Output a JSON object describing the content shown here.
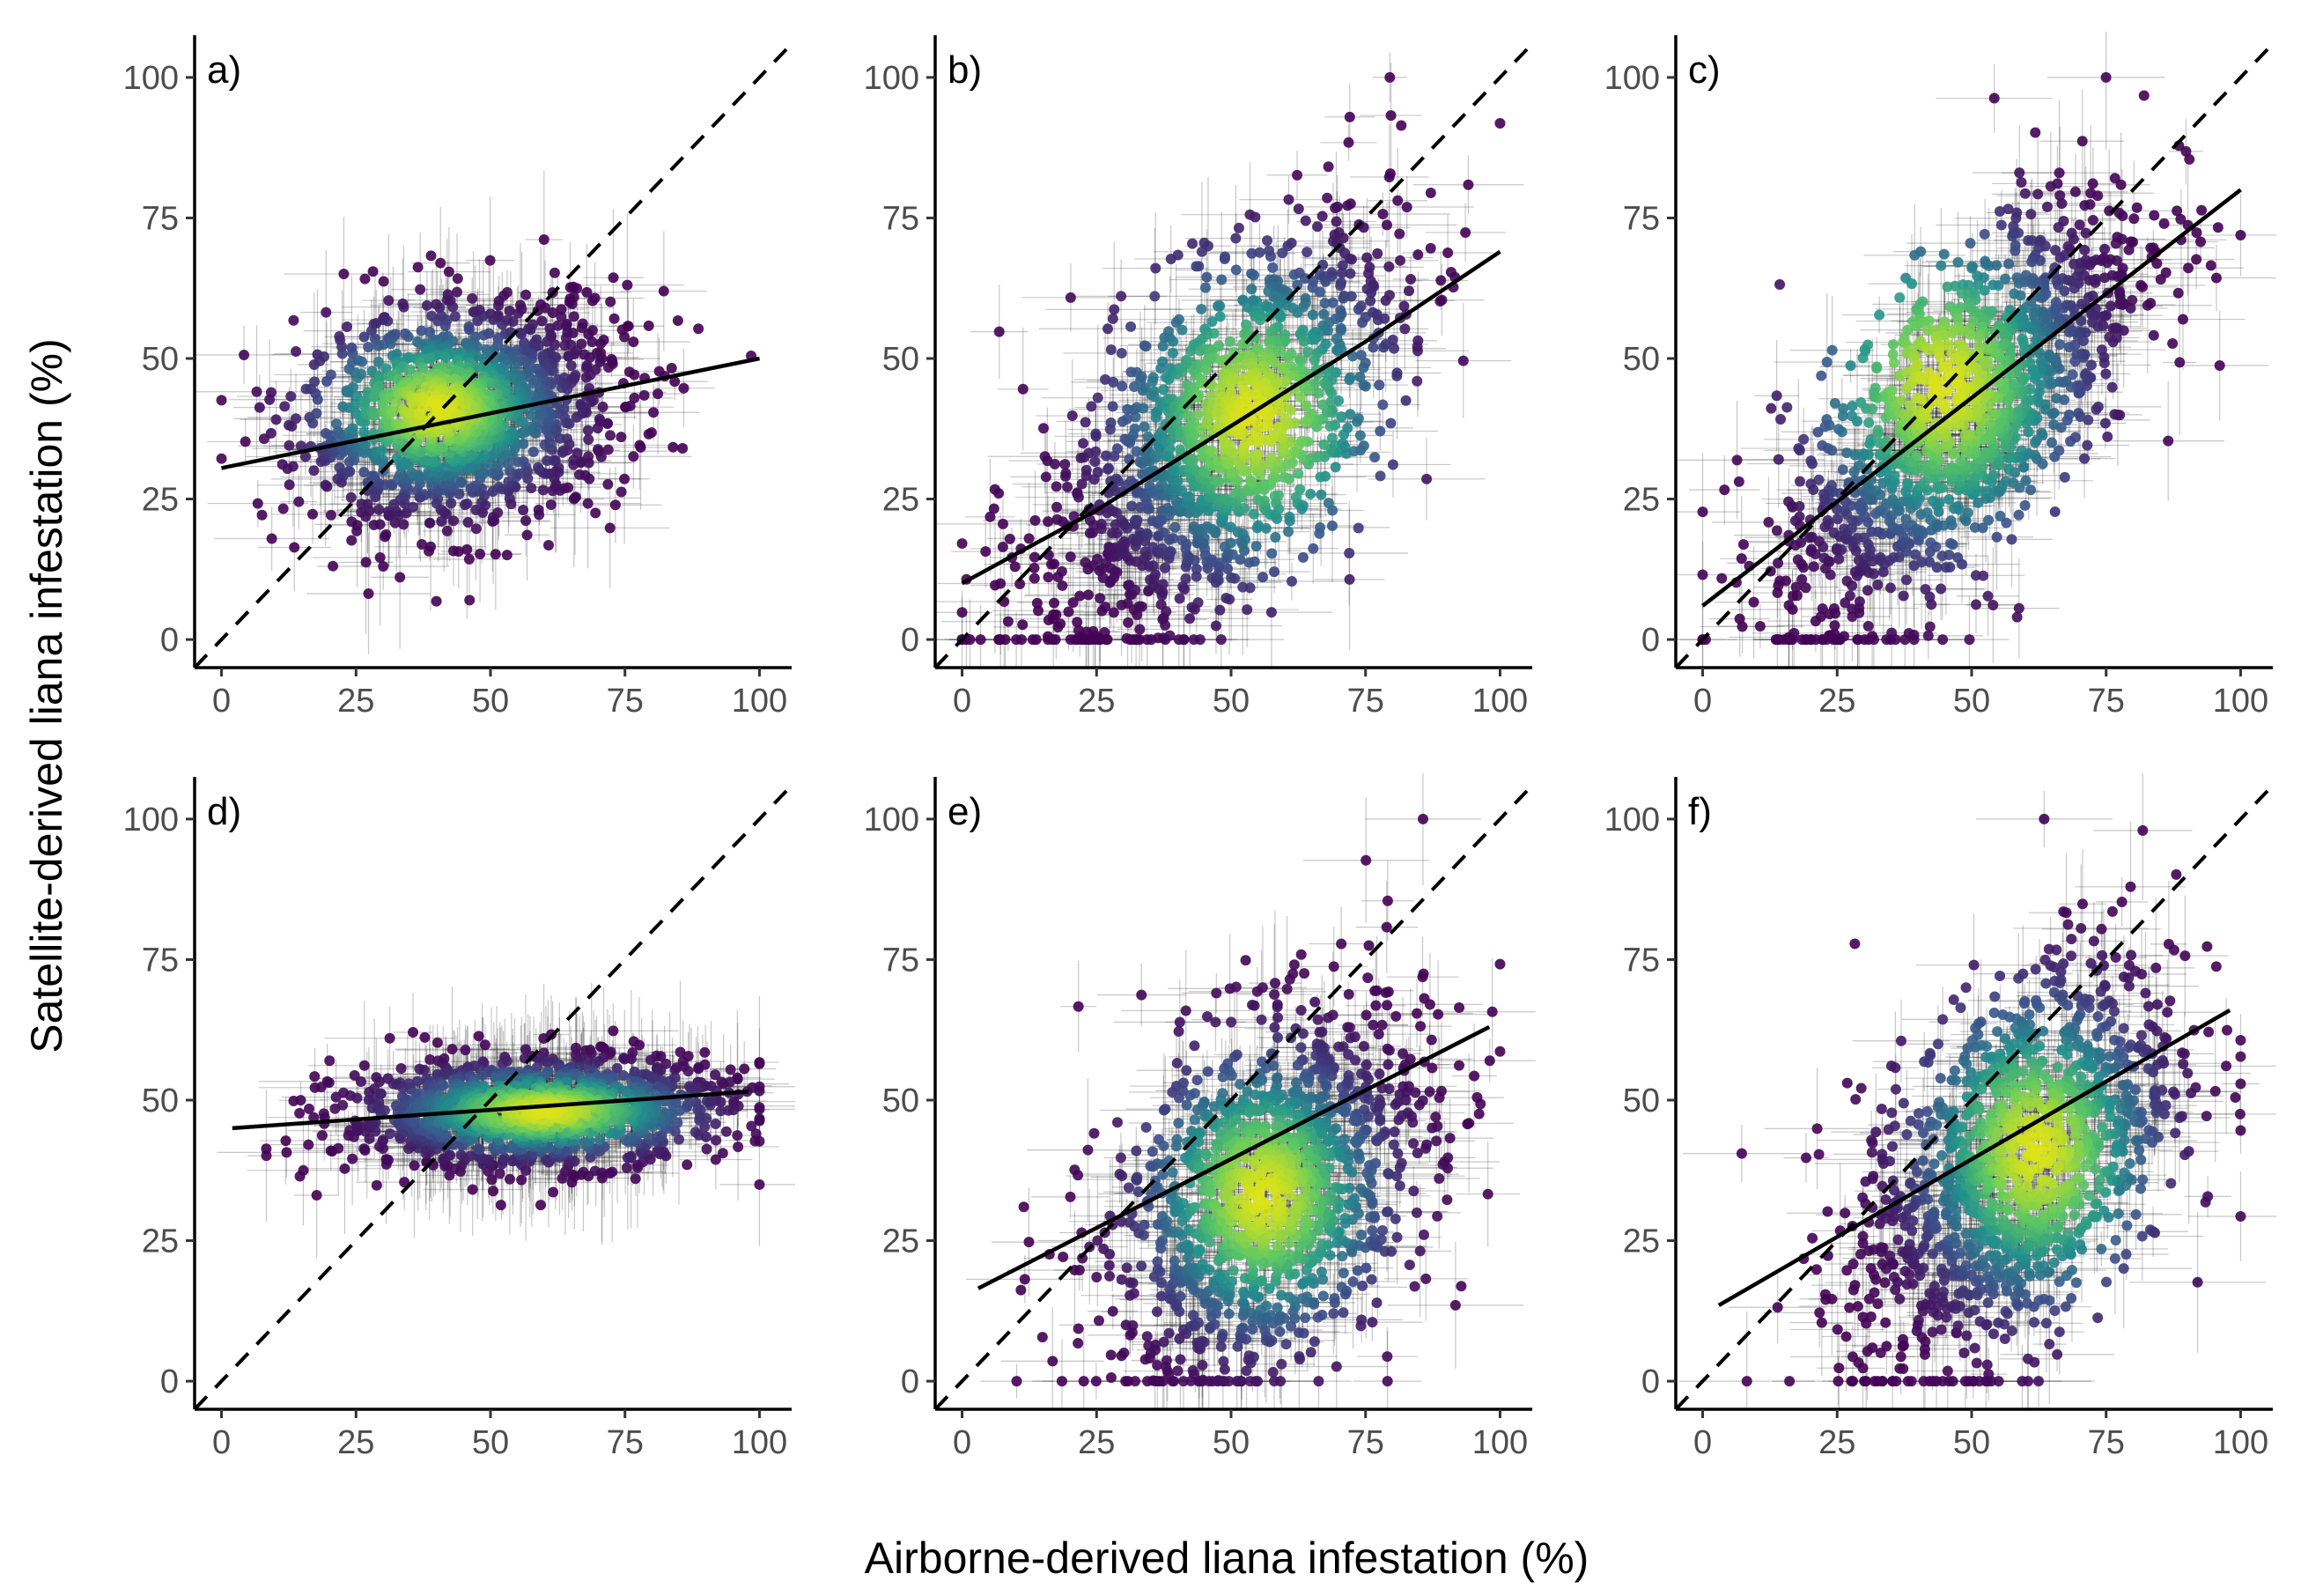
{
  "figure": {
    "xlabel": "Airborne-derived liana infestation (%)",
    "ylabel": "Satellite-derived liana infestation (%)"
  },
  "chart_data": [
    {
      "type": "scatter",
      "panel": "a)",
      "xlim": [
        0,
        100
      ],
      "ylim": [
        0,
        100
      ],
      "xticks": [
        "0",
        "25",
        "50",
        "75",
        "100"
      ],
      "yticks": [
        "0",
        "25",
        "50",
        "75",
        "100"
      ],
      "one_to_one_line": {
        "x": [
          0,
          100
        ],
        "y": [
          0,
          100
        ],
        "style": "dashed"
      },
      "fit_line": {
        "x": [
          0,
          100
        ],
        "y": [
          30.5,
          50
        ]
      },
      "cloud": {
        "center_x": 45,
        "center_y": 40,
        "sd_x": 15,
        "sd_y": 10,
        "corr": 0.2,
        "peak_x": 40,
        "peak_y": 41
      },
      "grid": false
    },
    {
      "type": "scatter",
      "panel": "b)",
      "xlim": [
        0,
        100
      ],
      "ylim": [
        0,
        100
      ],
      "xticks": [
        "0",
        "25",
        "50",
        "75",
        "100"
      ],
      "yticks": [
        "0",
        "25",
        "50",
        "75",
        "100"
      ],
      "one_to_one_line": {
        "x": [
          0,
          100
        ],
        "y": [
          0,
          100
        ],
        "style": "dashed"
      },
      "fit_line": {
        "x": [
          0,
          25,
          50,
          75,
          100
        ],
        "y": [
          10,
          23,
          38,
          53,
          69
        ]
      },
      "cloud": {
        "center_x": 47,
        "center_y": 35,
        "sd_x": 17,
        "sd_y": 19,
        "corr": 0.62,
        "peak_x": 54,
        "peak_y": 40
      },
      "grid": false
    },
    {
      "type": "scatter",
      "panel": "c)",
      "xlim": [
        0,
        100
      ],
      "ylim": [
        0,
        100
      ],
      "xticks": [
        "0",
        "25",
        "50",
        "75",
        "100"
      ],
      "yticks": [
        "0",
        "25",
        "50",
        "75",
        "100"
      ],
      "one_to_one_line": {
        "x": [
          0,
          100
        ],
        "y": [
          0,
          100
        ],
        "style": "dashed"
      },
      "fit_line": {
        "x": [
          0,
          100
        ],
        "y": [
          6,
          80
        ]
      },
      "cloud": {
        "center_x": 48,
        "center_y": 40,
        "sd_x": 17,
        "sd_y": 20,
        "corr": 0.7,
        "peak_x": 45,
        "peak_y": 45
      },
      "grid": false
    },
    {
      "type": "scatter",
      "panel": "d)",
      "xlim": [
        0,
        100
      ],
      "ylim": [
        0,
        100
      ],
      "xticks": [
        "0",
        "25",
        "50",
        "75",
        "100"
      ],
      "yticks": [
        "0",
        "25",
        "50",
        "75",
        "100"
      ],
      "one_to_one_line": {
        "x": [
          0,
          100
        ],
        "y": [
          0,
          100
        ],
        "style": "dashed"
      },
      "fit_line": {
        "x": [
          2,
          98
        ],
        "y": [
          45,
          51.5
        ]
      },
      "cloud": {
        "center_x": 58,
        "center_y": 48,
        "sd_x": 18,
        "sd_y": 5,
        "corr": 0.15,
        "peak_x": 60,
        "peak_y": 48
      },
      "grid": false
    },
    {
      "type": "scatter",
      "panel": "e)",
      "xlim": [
        0,
        100
      ],
      "ylim": [
        0,
        100
      ],
      "xticks": [
        "0",
        "25",
        "50",
        "75",
        "100"
      ],
      "yticks": [
        "0",
        "25",
        "50",
        "75",
        "100"
      ],
      "one_to_one_line": {
        "x": [
          0,
          100
        ],
        "y": [
          0,
          100
        ],
        "style": "dashed"
      },
      "fit_line": {
        "x": [
          3,
          98
        ],
        "y": [
          16.5,
          63
        ]
      },
      "cloud": {
        "center_x": 57,
        "center_y": 33,
        "sd_x": 15,
        "sd_y": 17,
        "corr": 0.4,
        "peak_x": 56,
        "peak_y": 33
      },
      "grid": false
    },
    {
      "type": "scatter",
      "panel": "f)",
      "xlim": [
        0,
        100
      ],
      "ylim": [
        0,
        100
      ],
      "xticks": [
        "0",
        "25",
        "50",
        "75",
        "100"
      ],
      "yticks": [
        "0",
        "25",
        "50",
        "75",
        "100"
      ],
      "one_to_one_line": {
        "x": [
          0,
          100
        ],
        "y": [
          0,
          100
        ],
        "style": "dashed"
      },
      "fit_line": {
        "x": [
          3,
          98
        ],
        "y": [
          13.5,
          66
        ]
      },
      "cloud": {
        "center_x": 58,
        "center_y": 38,
        "sd_x": 15,
        "sd_y": 19,
        "corr": 0.5,
        "peak_x": 62,
        "peak_y": 41
      },
      "grid": false
    }
  ]
}
